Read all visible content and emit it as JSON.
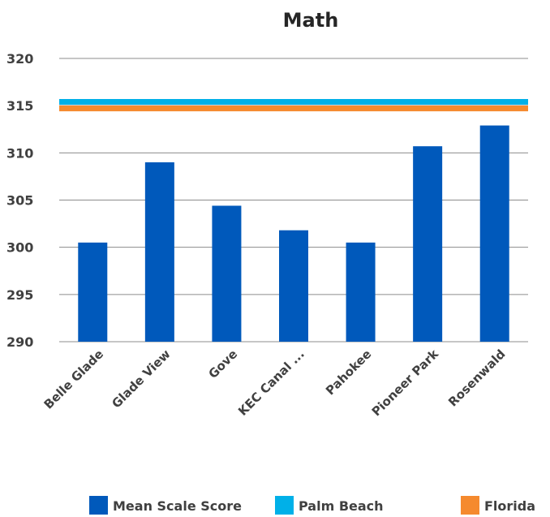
{
  "chart_data": {
    "type": "bar",
    "title": "Math",
    "categories": [
      "Belle Glade",
      "Glade View",
      "Gove",
      "KEC Canal ...",
      "Pahokee",
      "Pioneer Park",
      "Rosenwald"
    ],
    "series": [
      {
        "name": "Mean Scale Score",
        "type": "bar",
        "color": "#0059BB",
        "values": [
          300.5,
          309,
          304.4,
          301.8,
          300.5,
          310.7,
          312.9
        ]
      }
    ],
    "reference_lines": [
      {
        "name": "Palm Beach",
        "value": 315.4,
        "color": "#00B0E8"
      },
      {
        "name": "Florida",
        "value": 314.7,
        "color": "#F58A2E"
      }
    ],
    "ylim": [
      290,
      320
    ],
    "yticks": [
      290,
      295,
      300,
      305,
      310,
      315,
      320
    ],
    "grid": true,
    "legend": {
      "position": "bottom",
      "items": [
        {
          "label": "Mean Scale Score",
          "color": "#0059BB"
        },
        {
          "label": "Palm Beach",
          "color": "#00B0E8"
        },
        {
          "label": "Florida",
          "color": "#F58A2E"
        }
      ]
    },
    "xlabel": "",
    "ylabel": ""
  }
}
